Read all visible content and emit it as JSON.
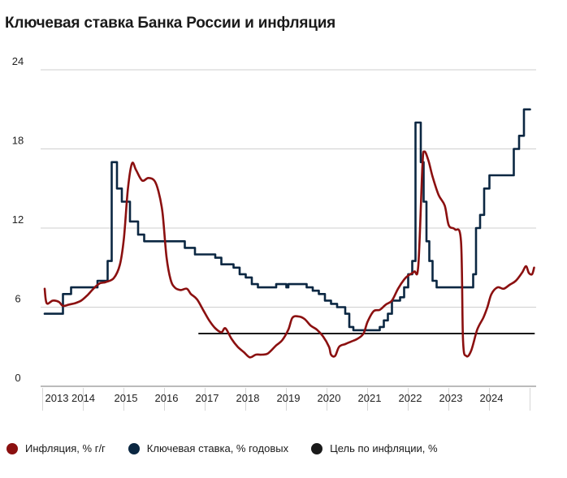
{
  "title": "Ключевая ставка Банка России и инфляция",
  "chart_data": {
    "type": "line",
    "title": "Ключевая ставка Банка России и инфляция",
    "xlabel": "",
    "ylabel": "",
    "ylim": [
      0,
      24
    ],
    "yticks": [
      "0",
      "6",
      "12",
      "18",
      "24"
    ],
    "xlim": [
      2013.0,
      2024.95
    ],
    "xtick_labels": [
      {
        "label": "2013",
        "x": 2013.3
      },
      {
        "label": "2014",
        "x": 2013.95
      },
      {
        "label": "2015",
        "x": 2015.0
      },
      {
        "label": "2016",
        "x": 2016.0
      },
      {
        "label": "2017",
        "x": 2017.0
      },
      {
        "label": "2018",
        "x": 2018.0
      },
      {
        "label": "2019",
        "x": 2019.0
      },
      {
        "label": "2020",
        "x": 2020.0
      },
      {
        "label": "2021",
        "x": 2021.0
      },
      {
        "label": "2022",
        "x": 2022.0
      },
      {
        "label": "2023",
        "x": 2023.0
      },
      {
        "label": "2024",
        "x": 2024.0
      }
    ],
    "grid": "horizontal",
    "legend_position": "bottom",
    "series": [
      {
        "name": "Инфляция, % г/г",
        "color": "#8b1010",
        "style": "smooth",
        "points": [
          [
            2013.0,
            7.4
          ],
          [
            2013.05,
            6.3
          ],
          [
            2013.2,
            6.5
          ],
          [
            2013.35,
            6.4
          ],
          [
            2013.45,
            6.1
          ],
          [
            2013.6,
            6.2
          ],
          [
            2013.75,
            6.3
          ],
          [
            2013.9,
            6.5
          ],
          [
            2014.05,
            6.9
          ],
          [
            2014.2,
            7.4
          ],
          [
            2014.35,
            7.8
          ],
          [
            2014.5,
            7.9
          ],
          [
            2014.7,
            8.2
          ],
          [
            2014.85,
            9.2
          ],
          [
            2014.95,
            11.2
          ],
          [
            2015.05,
            15.0
          ],
          [
            2015.15,
            16.9
          ],
          [
            2015.25,
            16.4
          ],
          [
            2015.4,
            15.6
          ],
          [
            2015.55,
            15.8
          ],
          [
            2015.7,
            15.6
          ],
          [
            2015.8,
            14.8
          ],
          [
            2015.9,
            13.2
          ],
          [
            2016.0,
            9.8
          ],
          [
            2016.1,
            8.1
          ],
          [
            2016.2,
            7.5
          ],
          [
            2016.35,
            7.3
          ],
          [
            2016.5,
            7.4
          ],
          [
            2016.6,
            7.0
          ],
          [
            2016.75,
            6.6
          ],
          [
            2016.9,
            5.8
          ],
          [
            2017.05,
            5.0
          ],
          [
            2017.2,
            4.4
          ],
          [
            2017.35,
            4.1
          ],
          [
            2017.45,
            4.4
          ],
          [
            2017.6,
            3.6
          ],
          [
            2017.75,
            3.0
          ],
          [
            2017.9,
            2.6
          ],
          [
            2018.05,
            2.2
          ],
          [
            2018.2,
            2.4
          ],
          [
            2018.35,
            2.4
          ],
          [
            2018.5,
            2.5
          ],
          [
            2018.7,
            3.1
          ],
          [
            2018.85,
            3.5
          ],
          [
            2019.0,
            4.3
          ],
          [
            2019.1,
            5.2
          ],
          [
            2019.25,
            5.3
          ],
          [
            2019.4,
            5.1
          ],
          [
            2019.55,
            4.6
          ],
          [
            2019.7,
            4.3
          ],
          [
            2019.85,
            3.8
          ],
          [
            2020.0,
            3.0
          ],
          [
            2020.05,
            2.4
          ],
          [
            2020.15,
            2.3
          ],
          [
            2020.25,
            3.0
          ],
          [
            2020.4,
            3.2
          ],
          [
            2020.55,
            3.4
          ],
          [
            2020.7,
            3.6
          ],
          [
            2020.85,
            4.0
          ],
          [
            2020.95,
            4.9
          ],
          [
            2021.1,
            5.7
          ],
          [
            2021.25,
            5.8
          ],
          [
            2021.4,
            6.2
          ],
          [
            2021.55,
            6.5
          ],
          [
            2021.7,
            7.4
          ],
          [
            2021.85,
            8.1
          ],
          [
            2021.95,
            8.4
          ],
          [
            2022.1,
            8.7
          ],
          [
            2022.2,
            9.2
          ],
          [
            2022.3,
            16.7
          ],
          [
            2022.35,
            17.8
          ],
          [
            2022.45,
            17.1
          ],
          [
            2022.55,
            15.9
          ],
          [
            2022.7,
            14.5
          ],
          [
            2022.85,
            13.7
          ],
          [
            2022.95,
            12.2
          ],
          [
            2023.1,
            11.9
          ],
          [
            2023.25,
            11.0
          ],
          [
            2023.3,
            3.5
          ],
          [
            2023.38,
            2.3
          ],
          [
            2023.5,
            2.7
          ],
          [
            2023.65,
            4.3
          ],
          [
            2023.8,
            5.2
          ],
          [
            2023.9,
            6.0
          ],
          [
            2024.0,
            7.0
          ],
          [
            2024.15,
            7.5
          ],
          [
            2024.3,
            7.4
          ],
          [
            2024.45,
            7.7
          ],
          [
            2024.6,
            8.0
          ],
          [
            2024.75,
            8.6
          ],
          [
            2024.85,
            9.1
          ],
          [
            2024.92,
            8.6
          ],
          [
            2025.0,
            8.5
          ],
          [
            2025.05,
            9.0
          ]
        ]
      },
      {
        "name": "Ключевая ставка, % годовых",
        "color": "#0b2742",
        "style": "step",
        "points": [
          [
            2013.0,
            5.5
          ],
          [
            2013.45,
            5.5
          ],
          [
            2013.45,
            7.0
          ],
          [
            2013.65,
            7.0
          ],
          [
            2013.65,
            7.5
          ],
          [
            2014.3,
            7.5
          ],
          [
            2014.3,
            8.0
          ],
          [
            2014.55,
            8.0
          ],
          [
            2014.55,
            9.5
          ],
          [
            2014.65,
            9.5
          ],
          [
            2014.65,
            17.0
          ],
          [
            2014.78,
            17.0
          ],
          [
            2014.78,
            15.0
          ],
          [
            2014.9,
            15.0
          ],
          [
            2014.9,
            14.0
          ],
          [
            2015.1,
            14.0
          ],
          [
            2015.1,
            12.5
          ],
          [
            2015.3,
            12.5
          ],
          [
            2015.3,
            11.5
          ],
          [
            2015.45,
            11.5
          ],
          [
            2015.45,
            11.0
          ],
          [
            2016.45,
            11.0
          ],
          [
            2016.45,
            10.5
          ],
          [
            2016.7,
            10.5
          ],
          [
            2016.7,
            10.0
          ],
          [
            2017.2,
            10.0
          ],
          [
            2017.2,
            9.75
          ],
          [
            2017.35,
            9.75
          ],
          [
            2017.35,
            9.25
          ],
          [
            2017.65,
            9.25
          ],
          [
            2017.65,
            9.0
          ],
          [
            2017.8,
            9.0
          ],
          [
            2017.8,
            8.5
          ],
          [
            2017.95,
            8.5
          ],
          [
            2017.95,
            8.25
          ],
          [
            2018.1,
            8.25
          ],
          [
            2018.1,
            7.75
          ],
          [
            2018.25,
            7.75
          ],
          [
            2018.25,
            7.5
          ],
          [
            2018.7,
            7.5
          ],
          [
            2018.7,
            7.75
          ],
          [
            2018.95,
            7.75
          ],
          [
            2018.95,
            7.5
          ],
          [
            2019.0,
            7.5
          ],
          [
            2019.0,
            7.75
          ],
          [
            2019.45,
            7.75
          ],
          [
            2019.45,
            7.5
          ],
          [
            2019.6,
            7.5
          ],
          [
            2019.6,
            7.25
          ],
          [
            2019.75,
            7.25
          ],
          [
            2019.75,
            7.0
          ],
          [
            2019.9,
            7.0
          ],
          [
            2019.9,
            6.5
          ],
          [
            2020.05,
            6.5
          ],
          [
            2020.05,
            6.25
          ],
          [
            2020.2,
            6.25
          ],
          [
            2020.2,
            6.0
          ],
          [
            2020.4,
            6.0
          ],
          [
            2020.4,
            5.5
          ],
          [
            2020.5,
            5.5
          ],
          [
            2020.5,
            4.5
          ],
          [
            2020.6,
            4.5
          ],
          [
            2020.6,
            4.25
          ],
          [
            2021.25,
            4.25
          ],
          [
            2021.25,
            4.5
          ],
          [
            2021.35,
            4.5
          ],
          [
            2021.35,
            5.0
          ],
          [
            2021.45,
            5.0
          ],
          [
            2021.45,
            5.5
          ],
          [
            2021.55,
            5.5
          ],
          [
            2021.55,
            6.5
          ],
          [
            2021.75,
            6.5
          ],
          [
            2021.75,
            6.75
          ],
          [
            2021.85,
            6.75
          ],
          [
            2021.85,
            7.5
          ],
          [
            2021.95,
            7.5
          ],
          [
            2021.95,
            8.5
          ],
          [
            2022.05,
            8.5
          ],
          [
            2022.05,
            9.5
          ],
          [
            2022.13,
            9.5
          ],
          [
            2022.13,
            20.0
          ],
          [
            2022.26,
            20.0
          ],
          [
            2022.26,
            17.0
          ],
          [
            2022.33,
            17.0
          ],
          [
            2022.33,
            14.0
          ],
          [
            2022.4,
            14.0
          ],
          [
            2022.4,
            11.0
          ],
          [
            2022.47,
            11.0
          ],
          [
            2022.47,
            9.5
          ],
          [
            2022.55,
            9.5
          ],
          [
            2022.55,
            8.0
          ],
          [
            2022.65,
            8.0
          ],
          [
            2022.65,
            7.5
          ],
          [
            2023.55,
            7.5
          ],
          [
            2023.55,
            8.5
          ],
          [
            2023.62,
            8.5
          ],
          [
            2023.62,
            12.0
          ],
          [
            2023.72,
            12.0
          ],
          [
            2023.72,
            13.0
          ],
          [
            2023.82,
            13.0
          ],
          [
            2023.82,
            15.0
          ],
          [
            2023.95,
            15.0
          ],
          [
            2023.95,
            16.0
          ],
          [
            2024.55,
            16.0
          ],
          [
            2024.55,
            18.0
          ],
          [
            2024.68,
            18.0
          ],
          [
            2024.68,
            19.0
          ],
          [
            2024.8,
            19.0
          ],
          [
            2024.8,
            21.0
          ],
          [
            2024.95,
            21.0
          ]
        ]
      },
      {
        "name": "Цель по инфляции, %",
        "color": "#1a1a1a",
        "style": "flat",
        "points": [
          [
            2016.8,
            4.0
          ],
          [
            2025.05,
            4.0
          ]
        ]
      }
    ]
  }
}
